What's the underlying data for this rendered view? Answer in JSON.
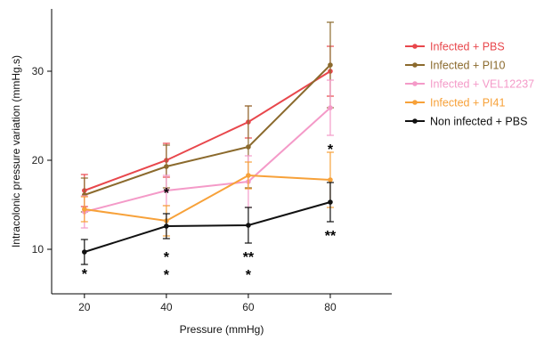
{
  "chart_data": {
    "type": "line",
    "xlabel": "Pressure (mmHg)",
    "ylabel": "Intracolonic pressure variation (mmHg.s)",
    "x": [
      20,
      40,
      60,
      80
    ],
    "xticks": [
      "20",
      "40",
      "60",
      "80"
    ],
    "yticks": [
      "10",
      "20",
      "30"
    ],
    "xlim": [
      12,
      95
    ],
    "ylim": [
      5,
      37
    ],
    "grid": false,
    "legend_position": "top-right",
    "series": [
      {
        "name": "Infected + PBS",
        "color": "#e8474c",
        "values": [
          16.6,
          20.0,
          24.3,
          30.0
        ],
        "err": [
          1.8,
          1.9,
          1.8,
          2.8
        ]
      },
      {
        "name": "Infected + PI10",
        "color": "#8b6a2d",
        "values": [
          16.1,
          19.3,
          21.5,
          30.7
        ],
        "err": [
          1.9,
          2.4,
          4.6,
          4.8
        ]
      },
      {
        "name": "Infected + VEL12237",
        "color": "#f49ac8",
        "values": [
          14.2,
          16.6,
          17.6,
          25.9
        ],
        "err": [
          1.8,
          1.7,
          2.9,
          3.1
        ]
      },
      {
        "name": "Infected + PI41",
        "color": "#f7a139",
        "values": [
          14.5,
          13.2,
          18.3,
          17.8
        ],
        "err": [
          1.4,
          1.7,
          1.5,
          3.1
        ]
      },
      {
        "name": "Non infected + PBS",
        "color": "#111111",
        "values": [
          9.7,
          12.6,
          12.7,
          15.3
        ],
        "err": [
          1.4,
          1.4,
          2.0,
          2.2
        ]
      }
    ],
    "annotations": [
      {
        "x": 20,
        "y": 7.3,
        "text": "*"
      },
      {
        "x": 40,
        "y": 16.4,
        "text": "*"
      },
      {
        "x": 40,
        "y": 9.2,
        "text": "*"
      },
      {
        "x": 40,
        "y": 7.2,
        "text": "*"
      },
      {
        "x": 60,
        "y": 9.2,
        "text": "**"
      },
      {
        "x": 60,
        "y": 7.2,
        "text": "*"
      },
      {
        "x": 80,
        "y": 21.3,
        "text": "*"
      },
      {
        "x": 80,
        "y": 11.6,
        "text": "**"
      }
    ]
  }
}
